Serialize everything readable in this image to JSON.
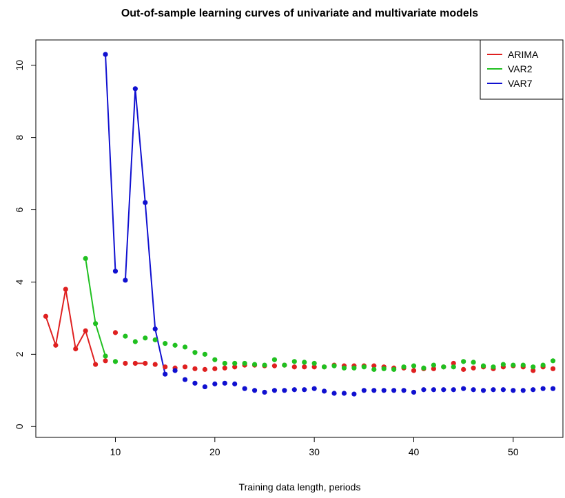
{
  "chart_data": {
    "type": "line",
    "title": "Out-of-sample learning curves of univariate and multivariate models",
    "xlabel": "Training data length, periods",
    "ylabel": "",
    "xlim": [
      2,
      55
    ],
    "ylim": [
      -0.3,
      10.7
    ],
    "x_ticks": [
      10,
      20,
      30,
      40,
      50
    ],
    "y_ticks": [
      0,
      2,
      4,
      6,
      8,
      10
    ],
    "grid": false,
    "legend_position": "top-right",
    "series": [
      {
        "name": "ARIMA",
        "color": "#DF2020",
        "x": [
          3,
          4,
          5,
          6,
          7,
          8,
          9,
          10,
          11,
          12,
          13,
          14,
          15,
          16,
          17,
          18,
          19,
          20,
          21,
          22,
          23,
          24,
          25,
          26,
          27,
          28,
          29,
          30,
          31,
          32,
          33,
          34,
          35,
          36,
          37,
          38,
          39,
          40,
          41,
          42,
          43,
          44,
          45,
          46,
          47,
          48,
          49,
          50,
          51,
          52,
          53,
          54
        ],
        "y": [
          3.05,
          2.25,
          3.8,
          2.15,
          2.65,
          1.72,
          1.82,
          2.6,
          1.75,
          1.75,
          1.75,
          1.72,
          1.65,
          1.62,
          1.65,
          1.6,
          1.58,
          1.6,
          1.62,
          1.65,
          1.7,
          1.7,
          1.68,
          1.68,
          1.7,
          1.65,
          1.65,
          1.65,
          1.65,
          1.7,
          1.68,
          1.68,
          1.68,
          1.68,
          1.65,
          1.62,
          1.62,
          1.55,
          1.6,
          1.6,
          1.65,
          1.75,
          1.58,
          1.62,
          1.65,
          1.6,
          1.65,
          1.68,
          1.65,
          1.55,
          1.65,
          1.6
        ],
        "segments": [
          [
            0,
            1
          ],
          [
            1,
            2
          ],
          [
            2,
            3
          ],
          [
            3,
            4
          ],
          [
            4,
            5
          ],
          [
            9,
            10
          ]
        ]
      },
      {
        "name": "VAR2",
        "color": "#20C020",
        "x": [
          7,
          8,
          9,
          10,
          11,
          12,
          13,
          14,
          15,
          16,
          17,
          18,
          19,
          20,
          21,
          22,
          23,
          24,
          25,
          26,
          27,
          28,
          29,
          30,
          31,
          32,
          33,
          34,
          35,
          36,
          37,
          38,
          39,
          40,
          41,
          42,
          43,
          44,
          45,
          46,
          47,
          48,
          49,
          50,
          51,
          52,
          53,
          54
        ],
        "y": [
          4.65,
          2.85,
          1.95,
          1.8,
          2.5,
          2.35,
          2.45,
          2.4,
          2.3,
          2.25,
          2.2,
          2.05,
          2.0,
          1.85,
          1.75,
          1.75,
          1.75,
          1.72,
          1.7,
          1.85,
          1.7,
          1.8,
          1.78,
          1.75,
          1.65,
          1.68,
          1.62,
          1.62,
          1.65,
          1.58,
          1.6,
          1.58,
          1.65,
          1.68,
          1.62,
          1.7,
          1.65,
          1.65,
          1.8,
          1.78,
          1.68,
          1.65,
          1.72,
          1.7,
          1.7,
          1.65,
          1.7,
          1.82
        ],
        "segments": [
          [
            0,
            1
          ],
          [
            1,
            2
          ]
        ]
      },
      {
        "name": "VAR7",
        "color": "#1010D0",
        "x": [
          9,
          10,
          11,
          12,
          13,
          14,
          15,
          16,
          17,
          18,
          19,
          20,
          21,
          22,
          23,
          24,
          25,
          26,
          27,
          28,
          29,
          30,
          31,
          32,
          33,
          34,
          35,
          36,
          37,
          38,
          39,
          40,
          41,
          42,
          43,
          44,
          45,
          46,
          47,
          48,
          49,
          50,
          51,
          52,
          53,
          54
        ],
        "y": [
          10.3,
          4.3,
          4.05,
          9.35,
          6.2,
          2.7,
          1.45,
          1.55,
          1.3,
          1.2,
          1.1,
          1.18,
          1.2,
          1.18,
          1.05,
          1.0,
          0.95,
          1.0,
          1.0,
          1.02,
          1.02,
          1.05,
          0.98,
          0.92,
          0.92,
          0.9,
          1.0,
          1.0,
          1.0,
          1.0,
          1.0,
          0.95,
          1.02,
          1.02,
          1.02,
          1.02,
          1.05,
          1.02,
          1.0,
          1.02,
          1.02,
          1.0,
          1.0,
          1.02,
          1.05,
          1.05
        ],
        "segments": [
          [
            0,
            1
          ],
          [
            2,
            3
          ],
          [
            3,
            4
          ],
          [
            4,
            5
          ],
          [
            5,
            6
          ]
        ]
      }
    ]
  }
}
